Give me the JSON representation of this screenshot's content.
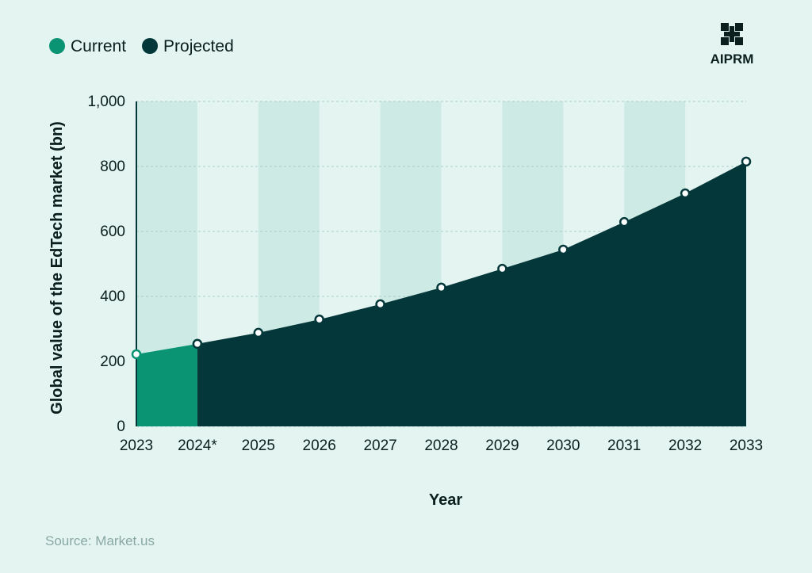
{
  "chart_data": {
    "type": "area",
    "legend": "top-left",
    "brand": "AIPRM",
    "source": "Source: Market.us",
    "y_label": "Global value of the EdTech market (bn)",
    "x_label": "Year",
    "categories": [
      "2023",
      "2024*",
      "2025",
      "2026",
      "2027",
      "2028",
      "2029",
      "2030",
      "2031",
      "2032",
      "2033"
    ],
    "series": [
      {
        "name": "Current",
        "color": "#0a9474",
        "values": [
          222,
          254,
          null,
          null,
          null,
          null,
          null,
          null,
          null,
          null,
          null
        ]
      },
      {
        "name": "Projected",
        "color": "#04373a",
        "values": [
          null,
          254,
          288,
          329,
          376,
          427,
          485,
          544,
          629,
          717,
          815
        ]
      }
    ],
    "ylim": [
      0,
      1000
    ],
    "yticks": [
      0,
      200,
      400,
      600,
      800,
      {
        "value": 1000,
        "label": "1,000"
      }
    ],
    "grid": true
  }
}
